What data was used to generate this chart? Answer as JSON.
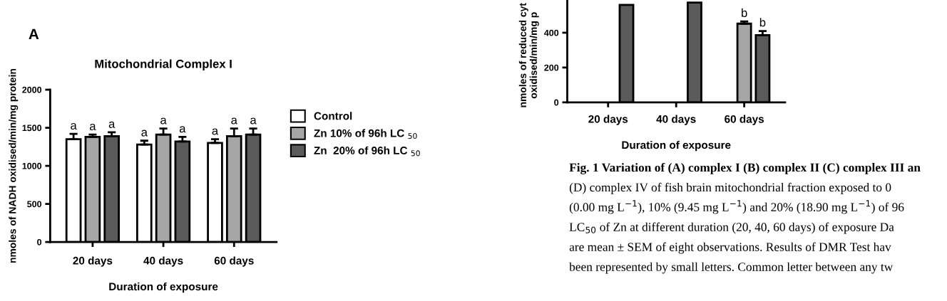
{
  "chart_data": [
    {
      "type": "bar",
      "title": "Mitochondrial Complex I",
      "xlabel": "Duration of exposure",
      "ylabel": "nmoles of NADH oxidised/min/mg protein",
      "categories": [
        "20 days",
        "40 days",
        "60 days"
      ],
      "series": [
        {
          "name": "Control",
          "color": "#ffffff",
          "values": [
            1350,
            1280,
            1300
          ],
          "errors": [
            [
              1350,
              1420
            ],
            [
              1280,
              1330
            ],
            [
              1300,
              1350
            ]
          ],
          "value_labels": [
            "a",
            "a",
            "a"
          ]
        },
        {
          "name": "Zn 10% of 96h LC $_{50}$",
          "color": "#a6a6a6",
          "values": [
            1380,
            1410,
            1390
          ],
          "errors": [
            [
              1380,
              1410
            ],
            [
              1410,
              1490
            ],
            [
              1390,
              1490
            ]
          ],
          "value_labels": [
            "a",
            "a",
            "a"
          ]
        },
        {
          "name": "Zn  20% of 96h LC $_{50}$",
          "color": "#5a5a5a",
          "values": [
            1390,
            1320,
            1410
          ],
          "errors": [
            [
              1390,
              1440
            ],
            [
              1320,
              1380
            ],
            [
              1410,
              1490
            ]
          ],
          "value_labels": [
            "a",
            "a",
            "a"
          ]
        }
      ],
      "ylim": [
        0,
        2000
      ],
      "yticks": [
        0,
        500,
        1000,
        1500,
        2000
      ],
      "grid": false,
      "legend": "right",
      "annotations": [
        "A"
      ]
    },
    {
      "type": "bar",
      "xlabel": "Duration of exposure",
      "ylabel": "nmoles of reduced cyt\noxidised/min/mg p",
      "categories": [
        "20 days",
        "40 days",
        "60 days"
      ],
      "series": [
        {
          "color": "#ffffff",
          "values": [
            null,
            null,
            null
          ],
          "errors": [
            null,
            null,
            null
          ],
          "value_labels": [
            null,
            null,
            null
          ]
        },
        {
          "color": "#a6a6a6",
          "values": [
            null,
            null,
            452
          ],
          "errors": [
            null,
            null,
            [
              452,
              465
            ]
          ],
          "value_labels": [
            null,
            null,
            "b"
          ]
        },
        {
          "color": "#5a5a5a",
          "values": [
            560,
            573,
            386
          ],
          "errors": [
            null,
            null,
            [
              386,
              410
            ]
          ],
          "value_labels": [
            null,
            null,
            "b"
          ]
        }
      ],
      "ylim": [
        0,
        600
      ],
      "yticks": [
        0,
        200,
        400
      ],
      "grid": false,
      "legend": false,
      "annotations": [
        "Fig. 1 Variation of (A) complex I (B) complex II (C) complex III an",
        "(D) complex IV of fish brain mitochondrial fraction exposed to 0",
        "(0.00 mg L$^{−1}$), 10% (9.45 mg L$^{−1}$) and 20% (18.90 mg L$^{−1}$) of 96",
        "LC$_{50}$ of Zn at different duration (20, 40, 60 days) of exposure Da",
        "are mean ± SEM of eight observations. Results of DMR Test hav",
        "been represented by small letters. Common letter between any tw"
      ]
    }
  ]
}
